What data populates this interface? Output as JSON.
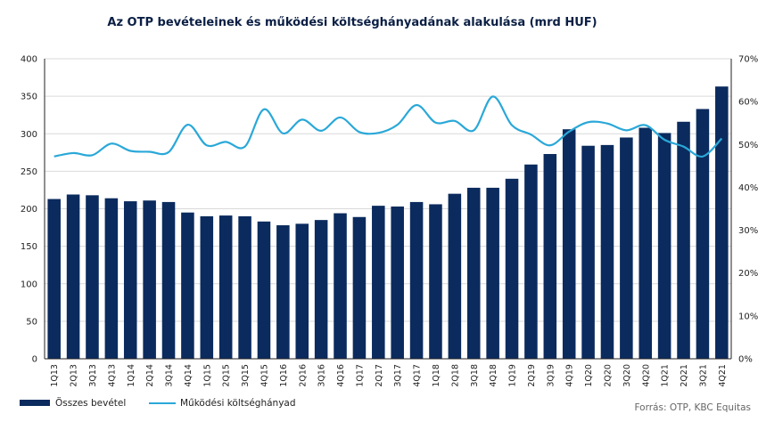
{
  "chart_data": {
    "type": "bar",
    "title": "Az OTP bevételeinek  és működési költséghányadának alakulása (mrd HUF)",
    "categories": [
      "1Q13",
      "2Q13",
      "3Q13",
      "4Q13",
      "1Q14",
      "2Q14",
      "3Q14",
      "4Q14",
      "1Q15",
      "2Q15",
      "3Q15",
      "4Q15",
      "1Q16",
      "2Q16",
      "3Q16",
      "4Q16",
      "1Q17",
      "2Q17",
      "3Q17",
      "4Q17",
      "1Q18",
      "2Q18",
      "3Q18",
      "4Q18",
      "1Q19",
      "2Q19",
      "3Q19",
      "4Q19",
      "1Q20",
      "2Q20",
      "3Q20",
      "4Q20",
      "1Q21",
      "2Q21",
      "3Q21",
      "4Q21"
    ],
    "series": [
      {
        "name": "Összes bevétel",
        "kind": "bar",
        "axis": "left",
        "color": "#0b2b5e",
        "values": [
          213,
          219,
          218,
          214,
          210,
          211,
          209,
          195,
          190,
          191,
          190,
          183,
          178,
          180,
          185,
          194,
          189,
          204,
          203,
          209,
          206,
          220,
          228,
          228,
          240,
          259,
          273,
          306,
          284,
          285,
          295,
          308,
          301,
          316,
          333,
          363
        ]
      },
      {
        "name": "Működési költséghányad",
        "kind": "line",
        "axis": "right",
        "color": "#2aa8d8",
        "values": [
          47.2,
          48.0,
          47.5,
          50.2,
          48.5,
          48.3,
          48.2,
          54.6,
          49.8,
          50.6,
          49.5,
          58.2,
          52.6,
          55.8,
          53.2,
          56.3,
          52.9,
          52.7,
          54.6,
          59.2,
          55.1,
          55.5,
          53.3,
          61.2,
          54.5,
          52.3,
          49.8,
          53.0,
          55.2,
          54.9,
          53.3,
          54.5,
          51.1,
          49.5,
          47.2,
          51.4
        ]
      }
    ],
    "y_left": {
      "ticks": [
        "0",
        "50",
        "100",
        "150",
        "200",
        "250",
        "300",
        "350",
        "400"
      ],
      "ylim": [
        0,
        400
      ]
    },
    "y_right": {
      "ticks": [
        "0%",
        "10%",
        "20%",
        "30%",
        "40%",
        "50%",
        "60%",
        "70%"
      ],
      "ylim": [
        0,
        70
      ]
    },
    "grid": "horizontal",
    "legend_position": "bottom-left",
    "source": "Forrás: OTP, KBC Equitas"
  }
}
